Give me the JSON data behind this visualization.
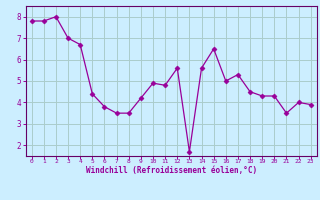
{
  "x": [
    0,
    1,
    2,
    3,
    4,
    5,
    6,
    7,
    8,
    9,
    10,
    11,
    12,
    13,
    14,
    15,
    16,
    17,
    18,
    19,
    20,
    21,
    22,
    23
  ],
  "y": [
    7.8,
    7.8,
    8.0,
    7.0,
    6.7,
    4.4,
    3.8,
    3.5,
    3.5,
    4.2,
    4.9,
    4.8,
    5.6,
    1.7,
    5.6,
    6.5,
    5.0,
    5.3,
    4.5,
    4.3,
    4.3,
    3.5,
    4.0,
    3.9
  ],
  "line_color": "#990099",
  "marker": "D",
  "marker_size": 2.5,
  "bg_color": "#cceeff",
  "grid_color": "#aacccc",
  "axis_color": "#660066",
  "tick_color": "#990099",
  "label_color": "#990099",
  "xlabel": "Windchill (Refroidissement éolien,°C)",
  "ylim": [
    1.5,
    8.5
  ],
  "xlim": [
    -0.5,
    23.5
  ],
  "yticks": [
    2,
    3,
    4,
    5,
    6,
    7,
    8
  ],
  "xticks": [
    0,
    1,
    2,
    3,
    4,
    5,
    6,
    7,
    8,
    9,
    10,
    11,
    12,
    13,
    14,
    15,
    16,
    17,
    18,
    19,
    20,
    21,
    22,
    23
  ]
}
